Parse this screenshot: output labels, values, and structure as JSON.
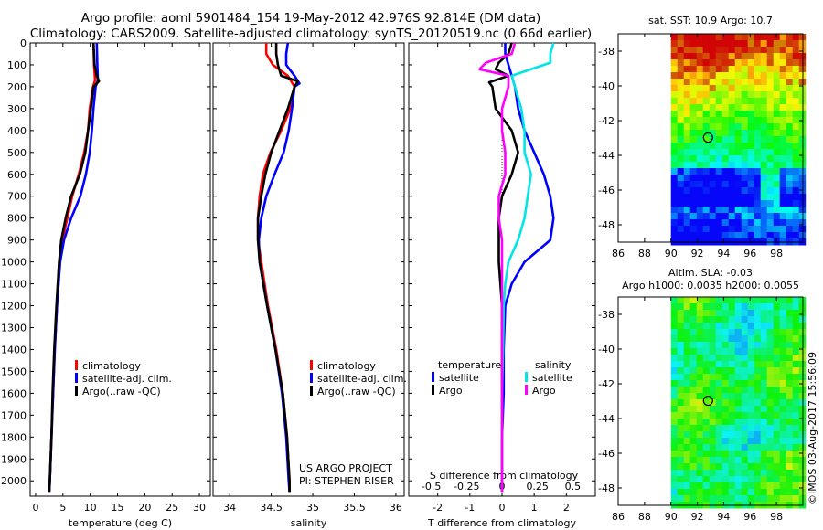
{
  "header": {
    "line1": "Argo profile: aoml 5901484_154 19-May-2012 42.976S 92.814E (DM data)",
    "line2": "Climatology: CARS2009. Satellite-adjusted climatology: synTS_20120519.nc (0.66d earlier)"
  },
  "colors": {
    "climatology": "#ff0000",
    "satellite": "#0000ff",
    "argo": "#000000",
    "sat_salinity": "#00e5e5",
    "argo_salinity": "#ff00ff"
  },
  "chart_data": [
    {
      "type": "line",
      "id": "temperature",
      "xlabel": "temperature (deg C)",
      "ylabel": "",
      "xlim": [
        -1,
        32
      ],
      "ylim": [
        2070,
        0
      ],
      "xticks": [
        "0",
        "5",
        "10",
        "15",
        "20",
        "25",
        "30"
      ],
      "yticks": [
        "0",
        "100",
        "200",
        "300",
        "400",
        "500",
        "600",
        "700",
        "800",
        "900",
        "1000",
        "1100",
        "1200",
        "1300",
        "1400",
        "1500",
        "1600",
        "1700",
        "1800",
        "1900",
        "2000"
      ],
      "legend": [
        "climatology",
        "satellite-adj. clim.",
        "Argo(..raw -QC)"
      ],
      "series": [
        {
          "name": "climatology",
          "depth": [
            0,
            100,
            170,
            200,
            300,
            400,
            500,
            600,
            700,
            800,
            900,
            1000,
            1200,
            1400,
            1600,
            1800,
            2000,
            2050
          ],
          "values": [
            10.6,
            10.7,
            10.9,
            10.5,
            9.9,
            9.6,
            8.9,
            7.9,
            6.7,
            5.8,
            4.9,
            4.4,
            3.9,
            3.5,
            3.2,
            2.9,
            2.6,
            2.5
          ]
        },
        {
          "name": "satellite-adj. clim.",
          "depth": [
            0,
            100,
            170,
            200,
            300,
            400,
            500,
            600,
            700,
            800,
            900,
            1000,
            1200,
            1400,
            1600,
            1800,
            2000,
            2050
          ],
          "values": [
            11.2,
            11.3,
            11.4,
            11.0,
            10.6,
            10.3,
            9.9,
            9.2,
            8.2,
            6.5,
            5.2,
            4.5,
            3.9,
            3.5,
            3.2,
            2.9,
            2.6,
            2.5
          ]
        },
        {
          "name": "Argo(..raw -QC)",
          "depth": [
            0,
            100,
            150,
            175,
            200,
            300,
            400,
            500,
            600,
            700,
            800,
            900,
            1000,
            1200,
            1400,
            1600,
            1800,
            2000,
            2050
          ],
          "values": [
            10.6,
            10.8,
            11.2,
            11.6,
            10.6,
            10.1,
            9.6,
            9.1,
            8.1,
            6.5,
            5.5,
            4.7,
            4.3,
            3.8,
            3.4,
            3.1,
            2.9,
            2.6,
            2.5
          ]
        }
      ]
    },
    {
      "type": "line",
      "id": "salinity",
      "xlabel": "salinity",
      "ylabel": "",
      "xlim": [
        33.8,
        36.1
      ],
      "ylim": [
        2070,
        0
      ],
      "xticks": [
        "34",
        "34.5",
        "35",
        "35.5",
        "36"
      ],
      "legend": [
        "climatology",
        "satellite-adj. clim.",
        "Argo(..raw -QC)"
      ],
      "series": [
        {
          "name": "climatology",
          "depth": [
            0,
            50,
            100,
            150,
            200,
            300,
            400,
            500,
            600,
            700,
            800,
            900,
            1000,
            1200,
            1400,
            1600,
            1800,
            2000,
            2050
          ],
          "values": [
            34.44,
            34.44,
            34.52,
            34.7,
            34.78,
            34.73,
            34.62,
            34.49,
            34.4,
            34.36,
            34.34,
            34.34,
            34.38,
            34.46,
            34.56,
            34.64,
            34.69,
            34.72,
            34.72
          ]
        },
        {
          "name": "satellite-adj. clim.",
          "depth": [
            0,
            50,
            100,
            150,
            185,
            200,
            300,
            400,
            500,
            600,
            700,
            800,
            900,
            1000,
            1200,
            1400,
            1600,
            1800,
            2000,
            2050
          ],
          "values": [
            34.7,
            34.68,
            34.68,
            34.78,
            34.84,
            34.78,
            34.75,
            34.71,
            34.65,
            34.54,
            34.44,
            34.38,
            34.35,
            34.36,
            34.45,
            34.55,
            34.63,
            34.68,
            34.71,
            34.72
          ]
        },
        {
          "name": "Argo(..raw -QC)",
          "depth": [
            0,
            50,
            100,
            150,
            175,
            200,
            300,
            400,
            500,
            600,
            700,
            800,
            900,
            1000,
            1200,
            1400,
            1600,
            1800,
            2000,
            2050
          ],
          "values": [
            34.56,
            34.56,
            34.58,
            34.62,
            34.82,
            34.78,
            34.7,
            34.6,
            34.5,
            34.43,
            34.38,
            34.34,
            34.34,
            34.36,
            34.45,
            34.55,
            34.64,
            34.69,
            34.72,
            34.72
          ]
        }
      ]
    },
    {
      "type": "line",
      "id": "difference",
      "xlabel": "T difference from climatology",
      "ylabel": "",
      "xlim": [
        -2.9,
        2.9
      ],
      "ylim": [
        2070,
        0
      ],
      "xticks": [
        "-2",
        "-1",
        "0",
        "1",
        "2"
      ],
      "secondary_xticks": [
        "-0.5",
        "-0.25",
        "0",
        "0.25",
        "0.5"
      ],
      "secondary_xlabel": "S difference from climatology",
      "legend": [
        "temperature",
        "satellite",
        "Argo",
        "salinity",
        "satellite",
        "Argo"
      ],
      "series": [
        {
          "name": "temperature satellite",
          "depth": [
            0,
            50,
            100,
            150,
            200,
            300,
            400,
            500,
            600,
            700,
            800,
            900,
            1000,
            1100,
            1200,
            1400,
            1600,
            1800,
            2000,
            2050
          ],
          "values": [
            0.1,
            0.1,
            0.2,
            0.3,
            0.4,
            0.5,
            0.7,
            1.0,
            1.3,
            1.5,
            1.6,
            1.5,
            0.7,
            0.3,
            0.1,
            0.05,
            0.05,
            0,
            0,
            0
          ]
        },
        {
          "name": "temperature Argo",
          "depth": [
            0,
            50,
            90,
            120,
            150,
            180,
            200,
            300,
            400,
            500,
            600,
            700,
            800,
            900,
            1000,
            1200,
            1400,
            1600,
            1800,
            2000,
            2050
          ],
          "values": [
            0.3,
            0.2,
            -0.1,
            -0.2,
            0.2,
            -0.4,
            -0.3,
            -0.2,
            0.3,
            0.5,
            0.3,
            0.0,
            -0.1,
            -0.1,
            -0.1,
            0,
            0,
            0,
            0,
            0,
            0
          ]
        },
        {
          "name": "salinity satellite",
          "depth": [
            0,
            50,
            90,
            150,
            200,
            300,
            400,
            500,
            600,
            700,
            800,
            900,
            1000,
            1100,
            1200,
            1400,
            1600,
            1800,
            2000,
            2050
          ],
          "values": [
            1.6,
            1.5,
            1.5,
            0.3,
            0.4,
            0.6,
            0.7,
            0.7,
            0.9,
            0.8,
            0.7,
            0.5,
            0.2,
            0.1,
            0.05,
            0.03,
            0,
            0,
            0,
            0
          ]
        },
        {
          "name": "salinity Argo",
          "depth": [
            0,
            50,
            90,
            120,
            150,
            200,
            300,
            400,
            500,
            600,
            700,
            800,
            900,
            1000,
            1200,
            1400,
            1600,
            1800,
            2000,
            2050
          ],
          "values": [
            0.4,
            0.3,
            -0.5,
            -0.7,
            0.2,
            0.2,
            0.0,
            0.0,
            0.1,
            0.1,
            -0.1,
            -0.1,
            0.0,
            0.0,
            0,
            0,
            0,
            0,
            0,
            0
          ]
        }
      ]
    },
    {
      "type": "heatmap",
      "id": "sst-map",
      "title": "sat. SST: 10.9  Argo: 10.7",
      "xticks": [
        "86",
        "88",
        "90",
        "92",
        "94",
        "96",
        "98"
      ],
      "yticks": [
        "-38",
        "-40",
        "-42",
        "-44",
        "-46",
        "-48"
      ],
      "xlim": [
        86,
        100
      ],
      "ylim": [
        -49,
        -37
      ],
      "argo_position": {
        "lon": 92.814,
        "lat": -42.976
      }
    },
    {
      "type": "heatmap",
      "id": "sla-map",
      "title": "Altim. SLA: -0.03",
      "subtitle": "Argo h1000: 0.0035 h2000: 0.0055",
      "xticks": [
        "86",
        "88",
        "90",
        "92",
        "94",
        "96",
        "98"
      ],
      "yticks": [
        "-38",
        "-40",
        "-42",
        "-44",
        "-46",
        "-48"
      ],
      "xlim": [
        86,
        100
      ],
      "ylim": [
        -49,
        -37
      ],
      "argo_position": {
        "lon": 92.814,
        "lat": -42.976
      }
    }
  ],
  "annotations": {
    "project": "US ARGO PROJECT",
    "pi": "PI: STEPHEN RISER",
    "legend_temperature": "temperature",
    "legend_salinity": "salinity",
    "legend_satellite": "satellite",
    "legend_argo": "Argo",
    "credit": "©IMOS 03-Aug-2017 15:56:09"
  }
}
